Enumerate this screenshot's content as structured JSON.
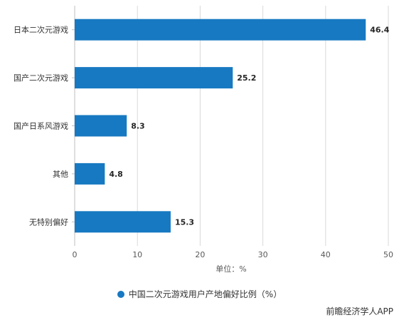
{
  "chart_data": {
    "type": "bar",
    "orientation": "horizontal",
    "categories": [
      "日本二次元游戏",
      "国产二次元游戏",
      "国产日系风游戏",
      "其他",
      "无特别偏好"
    ],
    "series": [
      {
        "name": "中国二次元游戏用户产地偏好比例（%）",
        "values": [
          46.4,
          25.2,
          8.3,
          4.8,
          15.3
        ]
      }
    ],
    "xlabel": "单位：%",
    "xlim": [
      0,
      50
    ],
    "xticks": [
      0,
      10,
      20,
      30,
      40,
      50
    ],
    "grid": true,
    "legend_position": "bottom-center",
    "bar_color": "#1779c1",
    "grid_color": "#d9d9d9"
  },
  "credit": "前瞻经济学人APP"
}
